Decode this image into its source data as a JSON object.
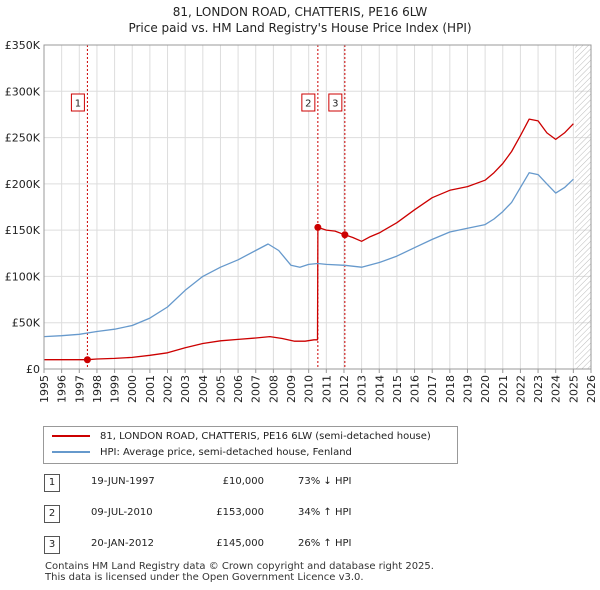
{
  "title_line1": "81, LONDON ROAD, CHATTERIS, PE16 6LW",
  "title_line2": "Price paid vs. HM Land Registry's House Price Index (HPI)",
  "colors": {
    "property": "#cc0000",
    "hpi": "#6699cc",
    "marker_line": "#cc0000",
    "hatch": "#cccccc",
    "grid": "#dddddd"
  },
  "chart_data": {
    "type": "line",
    "title": "Price paid vs. HM Land Registry's House Price Index (HPI)",
    "xlabel": "",
    "ylabel": "",
    "xlim": [
      1995,
      2026
    ],
    "ylim": [
      0,
      350000
    ],
    "x_ticks": [
      1995,
      1996,
      1997,
      1998,
      1999,
      2000,
      2001,
      2002,
      2003,
      2004,
      2005,
      2006,
      2007,
      2008,
      2009,
      2010,
      2011,
      2012,
      2013,
      2014,
      2015,
      2016,
      2017,
      2018,
      2019,
      2020,
      2021,
      2022,
      2023,
      2024,
      2025,
      2026
    ],
    "y_ticks": [
      {
        "value": 0,
        "label": "£0"
      },
      {
        "value": 50000,
        "label": "£50K"
      },
      {
        "value": 100000,
        "label": "£100K"
      },
      {
        "value": 150000,
        "label": "£150K"
      },
      {
        "value": 200000,
        "label": "£200K"
      },
      {
        "value": 250000,
        "label": "£250K"
      },
      {
        "value": 300000,
        "label": "£300K"
      },
      {
        "value": 350000,
        "label": "£350K"
      }
    ],
    "grid": true,
    "hatched_from_year": 2025.1,
    "series": [
      {
        "name": "81, LONDON ROAD, CHATTERIS, PE16 6LW (semi-detached house)",
        "color": "#cc0000",
        "points": [
          [
            1995.0,
            10000
          ],
          [
            1996.0,
            10000
          ],
          [
            1997.0,
            10000
          ],
          [
            1997.46,
            10000
          ],
          [
            1998.0,
            10800
          ],
          [
            1999.0,
            11500
          ],
          [
            2000.0,
            12500
          ],
          [
            2001.0,
            14800
          ],
          [
            2002.0,
            17500
          ],
          [
            2003.0,
            23000
          ],
          [
            2004.0,
            27500
          ],
          [
            2005.0,
            30500
          ],
          [
            2006.0,
            32000
          ],
          [
            2007.0,
            33500
          ],
          [
            2007.8,
            35000
          ],
          [
            2008.5,
            33000
          ],
          [
            2009.2,
            30000
          ],
          [
            2009.8,
            30000
          ],
          [
            2010.3,
            31500
          ],
          [
            2010.5,
            31500
          ],
          [
            2010.52,
            153000
          ],
          [
            2011.0,
            150000
          ],
          [
            2011.5,
            149000
          ],
          [
            2012.05,
            145000
          ],
          [
            2012.5,
            142000
          ],
          [
            2013.0,
            138000
          ],
          [
            2013.5,
            143000
          ],
          [
            2014.0,
            147000
          ],
          [
            2015.0,
            158000
          ],
          [
            2016.0,
            172000
          ],
          [
            2017.0,
            185000
          ],
          [
            2018.0,
            193000
          ],
          [
            2019.0,
            197000
          ],
          [
            2020.0,
            204000
          ],
          [
            2020.5,
            212000
          ],
          [
            2021.0,
            222000
          ],
          [
            2021.5,
            235000
          ],
          [
            2022.0,
            252000
          ],
          [
            2022.5,
            270000
          ],
          [
            2023.0,
            268000
          ],
          [
            2023.5,
            255000
          ],
          [
            2024.0,
            248000
          ],
          [
            2024.5,
            255000
          ],
          [
            2025.0,
            265000
          ]
        ]
      },
      {
        "name": "HPI: Average price, semi-detached house, Fenland",
        "color": "#6699cc",
        "points": [
          [
            1995.0,
            35000
          ],
          [
            1996.0,
            36000
          ],
          [
            1997.0,
            37500
          ],
          [
            1998.0,
            40500
          ],
          [
            1999.0,
            43000
          ],
          [
            2000.0,
            47000
          ],
          [
            2001.0,
            55000
          ],
          [
            2002.0,
            67000
          ],
          [
            2003.0,
            85000
          ],
          [
            2004.0,
            100000
          ],
          [
            2005.0,
            110000
          ],
          [
            2006.0,
            118000
          ],
          [
            2007.0,
            128000
          ],
          [
            2007.7,
            135000
          ],
          [
            2008.3,
            128000
          ],
          [
            2009.0,
            112000
          ],
          [
            2009.5,
            110000
          ],
          [
            2010.0,
            113000
          ],
          [
            2010.52,
            114000
          ],
          [
            2011.0,
            113000
          ],
          [
            2012.05,
            112000
          ],
          [
            2013.0,
            110000
          ],
          [
            2014.0,
            115000
          ],
          [
            2015.0,
            122000
          ],
          [
            2016.0,
            131000
          ],
          [
            2017.0,
            140000
          ],
          [
            2018.0,
            148000
          ],
          [
            2019.0,
            152000
          ],
          [
            2020.0,
            156000
          ],
          [
            2020.5,
            162000
          ],
          [
            2021.0,
            170000
          ],
          [
            2021.5,
            180000
          ],
          [
            2022.0,
            196000
          ],
          [
            2022.5,
            212000
          ],
          [
            2023.0,
            210000
          ],
          [
            2023.5,
            200000
          ],
          [
            2024.0,
            190000
          ],
          [
            2024.5,
            196000
          ],
          [
            2025.0,
            205000
          ]
        ]
      }
    ],
    "markers": [
      {
        "label": "1",
        "year": 1997.46,
        "price": 10000,
        "show_dot": true
      },
      {
        "label": "2",
        "year": 2010.52,
        "price": 153000,
        "show_dot": true
      },
      {
        "label": "3",
        "year": 2012.05,
        "price": 145000,
        "show_dot": true
      }
    ]
  },
  "legend": {
    "property_label": "81, LONDON ROAD, CHATTERIS, PE16 6LW (semi-detached house)",
    "hpi_label": "HPI: Average price, semi-detached house, Fenland"
  },
  "transactions": [
    {
      "num": "1",
      "date": "19-JUN-1997",
      "price": "£10,000",
      "hpi": "73% ↓ HPI"
    },
    {
      "num": "2",
      "date": "09-JUL-2010",
      "price": "£153,000",
      "hpi": "34% ↑ HPI"
    },
    {
      "num": "3",
      "date": "20-JAN-2012",
      "price": "£145,000",
      "hpi": "26% ↑ HPI"
    }
  ],
  "footer_line1": "Contains HM Land Registry data © Crown copyright and database right 2025.",
  "footer_line2": "This data is licensed under the Open Government Licence v3.0."
}
